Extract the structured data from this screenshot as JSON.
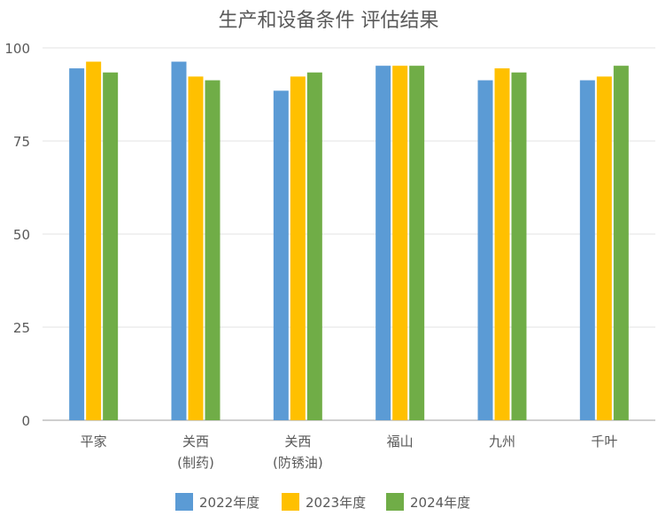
{
  "chart_data": {
    "type": "bar",
    "title": "生产和设备条件 评估结果",
    "categories": [
      [
        "平家"
      ],
      [
        "关西",
        "(制药)"
      ],
      [
        "关西",
        "(防锈油)"
      ],
      [
        "福山"
      ],
      [
        "九州"
      ],
      [
        "千叶"
      ]
    ],
    "series": [
      {
        "name": "2022年度",
        "color": "#5B9BD5",
        "values": [
          94.5,
          96.3,
          88.5,
          95.2,
          91.3,
          91.3
        ]
      },
      {
        "name": "2023年度",
        "color": "#FFC000",
        "values": [
          96.3,
          92.3,
          92.3,
          95.2,
          94.5,
          92.3
        ]
      },
      {
        "name": "2024年度",
        "color": "#70AD47",
        "values": [
          93.4,
          91.3,
          93.4,
          95.2,
          93.4,
          95.2
        ]
      }
    ],
    "ylim": [
      0,
      100
    ],
    "yticks": [
      "0",
      "25",
      "50",
      "75",
      "100"
    ],
    "grid": true,
    "legend": "bottom"
  }
}
